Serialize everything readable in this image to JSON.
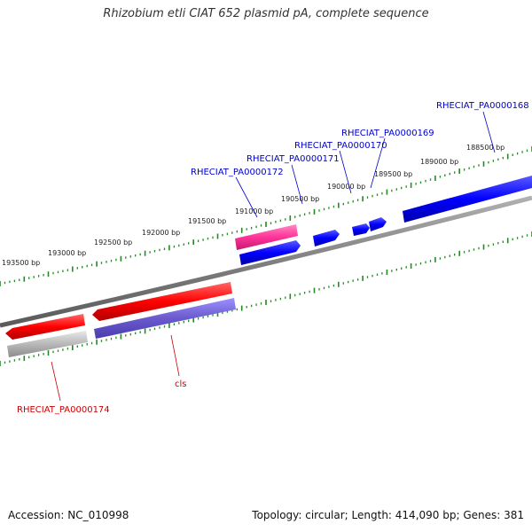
{
  "title": "Rhizobium etli CIAT 652 plasmid pA, complete sequence",
  "footer": {
    "accession": "Accession: NC_010998",
    "summary": "Topology: circular; Length: 414,090 bp; Genes: 381"
  },
  "colors": {
    "backbone": "#808080",
    "tick": "#228b22",
    "forward_cds": "#ff0000",
    "reverse_cds": "#0000ff",
    "rna": "#ff3399",
    "cog": "#6a5acd",
    "gray_feature": "#aaaaaa",
    "label_blue": "#0000cc",
    "label_red": "#cc0000"
  },
  "ticks": [
    {
      "label": "188500 bp"
    },
    {
      "label": "189000 bp"
    },
    {
      "label": "189500 bp"
    },
    {
      "label": "190000 bp"
    },
    {
      "label": "190500 bp"
    },
    {
      "label": "191000 bp"
    },
    {
      "label": "191500 bp"
    },
    {
      "label": "192000 bp"
    },
    {
      "label": "192500 bp"
    },
    {
      "label": "193000 bp"
    },
    {
      "label": "193500 bp"
    }
  ],
  "gene_labels": [
    {
      "text": "RHECIAT_PA0000168",
      "color": "blue"
    },
    {
      "text": "RHECIAT_PA0000169",
      "color": "blue"
    },
    {
      "text": "RHECIAT_PA0000170",
      "color": "blue"
    },
    {
      "text": "RHECIAT_PA0000171",
      "color": "blue"
    },
    {
      "text": "RHECIAT_PA0000172",
      "color": "blue"
    },
    {
      "text": "cls",
      "color": "red"
    },
    {
      "text": "RHECIAT_PA0000174",
      "color": "red"
    }
  ]
}
